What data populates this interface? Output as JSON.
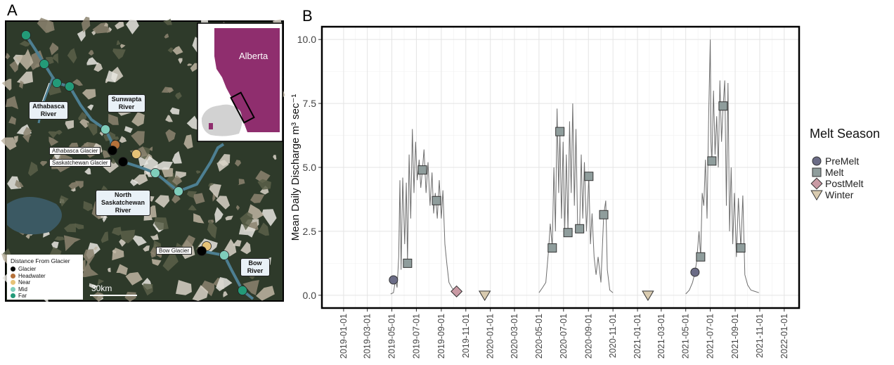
{
  "map": {
    "panel_label": "A",
    "labels": {
      "athabasca_river": "Athabasca River",
      "sunwapta_river": "Sunwapta River",
      "athabasca_glacier": "Athabasca Glacier",
      "saskatchewan_glacier": "Saskatchewan Glacier",
      "north_saskatchewan_river": "North Saskatchewan River",
      "bow_glacier": "Bow Glacier",
      "bow_river": "Bow River"
    },
    "scale": "30km",
    "inset_label": "Alberta",
    "legend": {
      "title": "Distance From Glacier",
      "items": [
        {
          "label": "Glacier",
          "color": "#000000"
        },
        {
          "label": "Headwater",
          "color": "#b5713a"
        },
        {
          "label": "Near",
          "color": "#e6c277"
        },
        {
          "label": "Mid",
          "color": "#7fcdbb"
        },
        {
          "label": "Far",
          "color": "#239a78"
        }
      ]
    }
  },
  "chart_data": {
    "type": "line",
    "panel_label": "B",
    "y_label": "Mean Daily Discharge m³ sec⁻¹",
    "color": "#6e6e6e",
    "grid": true,
    "xlim": [
      "2018-11-08",
      "2022-02-07"
    ],
    "ylim": [
      -0.5,
      10.5
    ],
    "xticks": [
      "2019-01-01",
      "2019-03-01",
      "2019-05-01",
      "2019-07-01",
      "2019-09-01",
      "2019-11-01",
      "2020-01-01",
      "2020-03-01",
      "2020-05-01",
      "2020-07-01",
      "2020-09-01",
      "2020-11-01",
      "2021-01-01",
      "2021-03-01",
      "2021-05-01",
      "2021-07-01",
      "2021-09-01",
      "2021-11-01",
      "2022-01-01"
    ],
    "yticks": [
      {
        "value": 0,
        "label": "0.0"
      },
      {
        "value": 2.5,
        "label": "2.5"
      },
      {
        "value": 5,
        "label": "5.0"
      },
      {
        "value": 7.5,
        "label": "7.5"
      },
      {
        "value": 10,
        "label": "10.0"
      }
    ],
    "x": [
      "2019-04-28",
      "2019-05-05",
      "2019-05-10",
      "2019-05-14",
      "2019-05-18",
      "2019-05-21",
      "2019-05-24",
      "2019-05-28",
      "2019-06-02",
      "2019-06-06",
      "2019-06-09",
      "2019-06-13",
      "2019-06-17",
      "2019-06-21",
      "2019-06-25",
      "2019-06-29",
      "2019-07-03",
      "2019-07-08",
      "2019-07-12",
      "2019-07-16",
      "2019-07-20",
      "2019-07-25",
      "2019-07-30",
      "2019-08-04",
      "2019-08-09",
      "2019-08-13",
      "2019-08-17",
      "2019-08-22",
      "2019-08-27",
      "2019-09-01",
      "2019-09-05",
      "2019-09-10",
      "2019-09-15",
      "2019-09-20",
      "2019-09-27",
      "2019-10-05",
      "2019-10-12",
      "2020-01-01",
      "2020-05-01",
      "2020-05-10",
      "2020-05-18",
      "2020-05-25",
      "2020-05-29",
      "2020-06-03",
      "2020-06-07",
      "2020-06-11",
      "2020-06-15",
      "2020-06-19",
      "2020-06-22",
      "2020-06-26",
      "2020-06-30",
      "2020-07-04",
      "2020-07-08",
      "2020-07-12",
      "2020-07-16",
      "2020-07-20",
      "2020-07-24",
      "2020-07-28",
      "2020-08-01",
      "2020-08-05",
      "2020-08-10",
      "2020-08-14",
      "2020-08-18",
      "2020-08-22",
      "2020-08-27",
      "2020-09-02",
      "2020-09-06",
      "2020-09-10",
      "2020-09-15",
      "2020-09-20",
      "2020-09-25",
      "2020-10-02",
      "2020-10-09",
      "2020-10-14",
      "2020-10-18",
      "2020-10-24",
      "2020-11-01",
      "2021-01-01",
      "2021-05-01",
      "2021-05-10",
      "2021-05-18",
      "2021-05-24",
      "2021-05-28",
      "2021-06-03",
      "2021-06-07",
      "2021-06-11",
      "2021-06-15",
      "2021-06-19",
      "2021-06-23",
      "2021-06-27",
      "2021-07-01",
      "2021-07-03",
      "2021-07-05",
      "2021-07-09",
      "2021-07-13",
      "2021-07-17",
      "2021-07-21",
      "2021-07-25",
      "2021-07-29",
      "2021-08-02",
      "2021-08-06",
      "2021-08-10",
      "2021-08-14",
      "2021-08-18",
      "2021-08-22",
      "2021-08-26",
      "2021-08-30",
      "2021-09-04",
      "2021-09-09",
      "2021-09-15",
      "2021-09-20",
      "2021-09-25",
      "2021-10-02",
      "2021-10-10",
      "2021-10-20",
      "2021-10-30"
    ],
    "values": [
      0.05,
      0.1,
      0.6,
      0.3,
      1.5,
      4.5,
      1.0,
      4.6,
      2.0,
      4.4,
      1.3,
      5.5,
      3.0,
      6.5,
      4.0,
      6.0,
      4.5,
      5.3,
      4.2,
      4.9,
      5.7,
      4.0,
      5.2,
      3.5,
      4.8,
      3.2,
      4.0,
      3.0,
      4.5,
      3.0,
      4.1,
      2.0,
      1.2,
      0.5,
      0.3,
      0.15,
      0.1,
      null,
      0.1,
      0.3,
      0.5,
      1.8,
      2.8,
      1.9,
      5.0,
      2.5,
      7.3,
      4.0,
      6.4,
      3.0,
      6.0,
      2.5,
      5.5,
      2.5,
      6.8,
      4.0,
      7.5,
      3.5,
      6.5,
      2.8,
      2.6,
      5.5,
      3.0,
      5.2,
      2.5,
      4.65,
      2.0,
      3.2,
      1.5,
      0.8,
      1.5,
      0.5,
      3.15,
      3.7,
      1.0,
      0.2,
      0.1,
      null,
      0.05,
      0.2,
      0.5,
      0.9,
      1.3,
      2.5,
      1.5,
      4.0,
      3.5,
      5.3,
      3.0,
      7.0,
      10.0,
      6.0,
      5.25,
      8.0,
      5.5,
      7.0,
      5.0,
      8.4,
      6.0,
      7.4,
      8.4,
      3.5,
      8.3,
      2.5,
      5.0,
      2.0,
      4.0,
      1.5,
      3.8,
      1.85,
      3.9,
      0.8,
      0.4,
      0.2,
      0.15,
      0.1
    ],
    "points": {
      "legend_title": "Melt Season",
      "series": [
        {
          "name": "PreMelt",
          "color": "#6b6c86",
          "shape": "circle",
          "x": [
            "2019-05-05",
            "2021-05-24"
          ],
          "values": [
            0.6,
            0.9
          ]
        },
        {
          "name": "Melt",
          "color": "#8f9d9c",
          "shape": "square",
          "x": [
            "2019-06-09",
            "2019-07-16",
            "2019-08-20",
            "2020-06-03",
            "2020-06-22",
            "2020-07-12",
            "2020-08-10",
            "2020-09-02",
            "2020-10-09",
            "2021-06-07",
            "2021-07-05",
            "2021-08-02",
            "2021-09-15"
          ],
          "values": [
            1.25,
            4.9,
            3.7,
            1.85,
            6.4,
            2.45,
            2.6,
            4.65,
            3.15,
            1.5,
            5.25,
            7.4,
            1.85
          ]
        },
        {
          "name": "PostMelt",
          "color": "#c99aa4",
          "shape": "diamond",
          "x": [
            "2019-10-09"
          ],
          "values": [
            0.15
          ]
        },
        {
          "name": "Winter",
          "color": "#d9cbb0",
          "shape": "triangle",
          "x": [
            "2019-12-18",
            "2021-01-27"
          ],
          "values": [
            0,
            0
          ]
        }
      ]
    }
  }
}
